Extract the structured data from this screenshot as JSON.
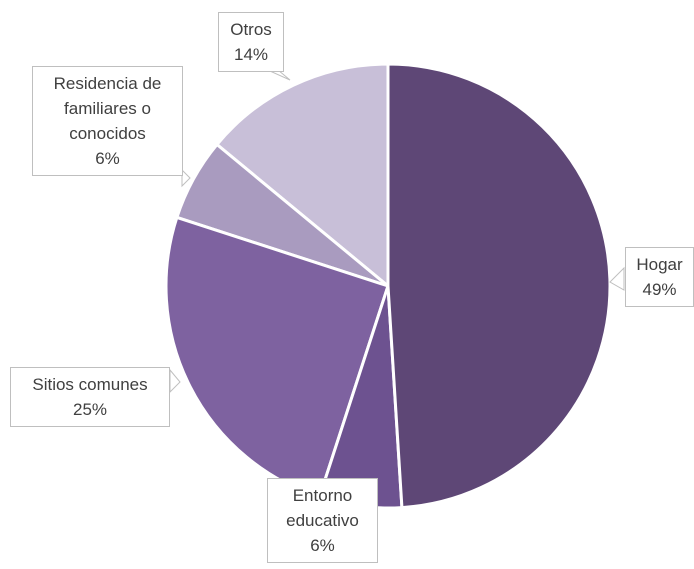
{
  "chart_data": {
    "type": "pie",
    "categories": [
      "Hogar",
      "Entorno educativo",
      "Sitios comunes",
      "Residencia de familiares o conocidos",
      "Otros"
    ],
    "values": [
      49,
      6,
      25,
      6,
      14
    ],
    "value_labels": [
      "49%",
      "6%",
      "25%",
      "6%",
      "14%"
    ],
    "colors": [
      "#5e4776",
      "#6d5290",
      "#7e62a0",
      "#a99bbf",
      "#c8bfd8"
    ]
  }
}
